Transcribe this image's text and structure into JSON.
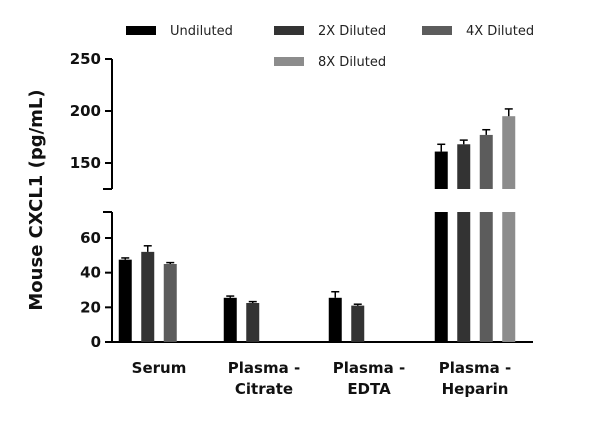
{
  "chart_data": {
    "type": "bar",
    "title": "",
    "xlabel": "",
    "ylabel": "Mouse CXCL1 (pg/mL)",
    "categories": [
      {
        "lines": [
          "Serum"
        ]
      },
      {
        "lines": [
          "Plasma -",
          "Citrate"
        ]
      },
      {
        "lines": [
          "Plasma -",
          "EDTA"
        ]
      },
      {
        "lines": [
          "Plasma -",
          "Heparin"
        ]
      }
    ],
    "series": [
      {
        "name": "Undiluted",
        "color": "#000000",
        "values": [
          47.5,
          25.5,
          25.5,
          161
        ],
        "errors": [
          1,
          1,
          3.5,
          7
        ]
      },
      {
        "name": "2X Diluted",
        "color": "#333333",
        "values": [
          52,
          22.5,
          21,
          168
        ],
        "errors": [
          3.5,
          0.8,
          0.8,
          4
        ]
      },
      {
        "name": "4X Diluted",
        "color": "#5c5c5c",
        "values": [
          45,
          null,
          null,
          177
        ],
        "errors": [
          0.8,
          null,
          null,
          5
        ]
      },
      {
        "name": "8X Diluted",
        "color": "#8c8c8c",
        "values": [
          null,
          null,
          null,
          195
        ],
        "errors": [
          null,
          null,
          null,
          7
        ]
      }
    ],
    "y_axis_segments": [
      {
        "range": [
          0,
          75
        ],
        "ticks": [
          0,
          20,
          40,
          60
        ]
      },
      {
        "range": [
          125,
          250
        ],
        "ticks": [
          150,
          200,
          250
        ]
      }
    ],
    "tick_text": {
      "0": "0",
      "20": "20",
      "40": "40",
      "60": "60",
      "150": "150",
      "200": "200",
      "250": "250"
    },
    "legend_position": "top"
  }
}
